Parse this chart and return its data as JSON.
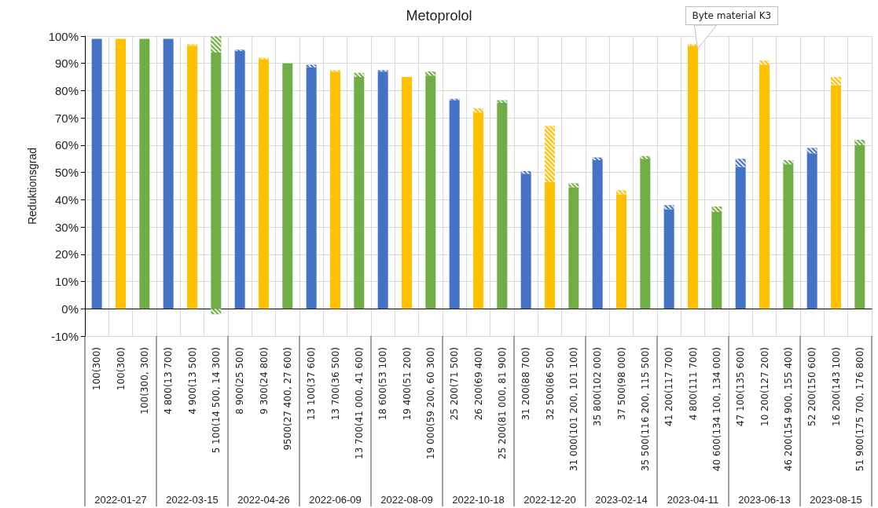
{
  "chart_data": {
    "type": "bar",
    "title": "Metoprolol",
    "ylabel": "Reduktionsgrad",
    "stacked": true,
    "grid": true,
    "categories": [
      "100(300)",
      "100(300)",
      "100(300, 300)",
      "4 800(13 700)",
      "4 900(13 500)",
      "5 100(14 500, 14 300)",
      "8 900(25 500)",
      "9 300(24 800)",
      "9500(27 400, 27 600)",
      "13 100(37 600)",
      "13 700(36 500)",
      "13 700(41 000, 41 600)",
      "18 600(53 100)",
      "19 400(51 200)",
      "19 000(59 200, 60 300)",
      "25 200(71 500)",
      "26 200(69 400)",
      "25 200(81 000, 81 900)",
      "31 200(88 700)",
      "32 500(86 500)",
      "31 000(101 200, 101 100)",
      "35 800(102 000)",
      "37 500(98 000)",
      "35 500(116 200, 115 500)",
      "41 200(117 700)",
      "4 800(111 700)",
      "40 600(134 100, 134 000)",
      "47 100(135 600)",
      "10 200(127 200)",
      "46 200(154 900, 155 400)",
      "52 200(150 600)",
      "16 200(143 100)",
      "51 900(175 700, 176 800)"
    ],
    "series": [
      {
        "colors": [
          "#4472c4",
          "#ffc000",
          "#70ad47",
          "#4472c4",
          "#ffc000",
          "#70ad47",
          "#4472c4",
          "#ffc000",
          "#70ad47",
          "#4472c4",
          "#ffc000",
          "#70ad47",
          "#4472c4",
          "#ffc000",
          "#70ad47",
          "#4472c4",
          "#ffc000",
          "#70ad47",
          "#4472c4",
          "#ffc000",
          "#70ad47",
          "#4472c4",
          "#ffc000",
          "#70ad47",
          "#4472c4",
          "#ffc000",
          "#70ad47",
          "#4472c4",
          "#ffc000",
          "#70ad47",
          "#4472c4",
          "#ffc000",
          "#70ad47"
        ],
        "values": [
          99,
          99,
          99,
          99,
          96.5,
          94,
          94.5,
          91.5,
          90,
          88.5,
          87,
          85,
          87,
          85,
          85.5,
          76.5,
          72,
          75.5,
          49.5,
          46.5,
          44.5,
          54.5,
          42,
          55,
          36.5,
          96.5,
          35.5,
          52,
          89.5,
          53,
          57,
          82,
          60
        ]
      },
      {
        "colors": [
          "#4472c4",
          "#ffc000",
          "#70ad47",
          "#4472c4",
          "#ffc000",
          "#70ad47",
          "#4472c4",
          "#ffc000",
          "#70ad47",
          "#4472c4",
          "#ffc000",
          "#70ad47",
          "#4472c4",
          "#ffc000",
          "#70ad47",
          "#4472c4",
          "#ffc000",
          "#70ad47",
          "#4472c4",
          "#ffc000",
          "#70ad47",
          "#4472c4",
          "#ffc000",
          "#70ad47",
          "#4472c4",
          "#ffc000",
          "#70ad47",
          "#4472c4",
          "#ffc000",
          "#70ad47",
          "#4472c4",
          "#ffc000",
          "#70ad47"
        ],
        "values": [
          null,
          null,
          null,
          null,
          0.5,
          6,
          0.5,
          0.5,
          null,
          1,
          0.5,
          1.5,
          0.5,
          null,
          1.5,
          0.5,
          1.5,
          1,
          1,
          20.5,
          1.5,
          1,
          1.5,
          1,
          1.5,
          0.5,
          2,
          3,
          1.5,
          1.5,
          2,
          3,
          2
        ]
      },
      {
        "colors": [
          "#4472c4",
          "#ffc000",
          "#70ad47",
          "#4472c4",
          "#ffc000",
          "#70ad47",
          "#4472c4",
          "#ffc000",
          "#70ad47",
          "#4472c4",
          "#ffc000",
          "#70ad47",
          "#4472c4",
          "#ffc000",
          "#70ad47",
          "#4472c4",
          "#ffc000",
          "#70ad47",
          "#4472c4",
          "#ffc000",
          "#70ad47",
          "#4472c4",
          "#ffc000",
          "#70ad47",
          "#4472c4",
          "#ffc000",
          "#70ad47",
          "#4472c4",
          "#ffc000",
          "#70ad47",
          "#4472c4",
          "#ffc000",
          "#70ad47"
        ],
        "values": [
          null,
          null,
          null,
          null,
          null,
          -2,
          null,
          null,
          null,
          null,
          null,
          null,
          null,
          null,
          null,
          null,
          null,
          null,
          null,
          null,
          null,
          null,
          null,
          null,
          null,
          null,
          null,
          null,
          null,
          null,
          null,
          null,
          null
        ]
      }
    ],
    "ylim": [
      -10,
      100
    ],
    "yticks": [
      {
        "value": -10,
        "label": "-10%"
      },
      {
        "value": 0,
        "label": "0%"
      },
      {
        "value": 10,
        "label": "10%"
      },
      {
        "value": 20,
        "label": "20%"
      },
      {
        "value": 30,
        "label": "30%"
      },
      {
        "value": 40,
        "label": "40%"
      },
      {
        "value": 50,
        "label": "50%"
      },
      {
        "value": 60,
        "label": "60%"
      },
      {
        "value": 70,
        "label": "70%"
      },
      {
        "value": 80,
        "label": "80%"
      },
      {
        "value": 90,
        "label": "90%"
      },
      {
        "value": 100,
        "label": "100%"
      }
    ],
    "annotations": [
      "2022-01-27",
      "2022-03-15",
      "2022-04-26",
      "2022-06-09",
      "2022-08-09",
      "2022-10-18",
      "2022-12-20",
      "2023-02-14",
      "2023-04-11",
      "2023-06-13",
      "2023-08-15",
      {
        "text": "Byte material K3",
        "x": "4 800(111 700)",
        "y": 97
      }
    ]
  }
}
